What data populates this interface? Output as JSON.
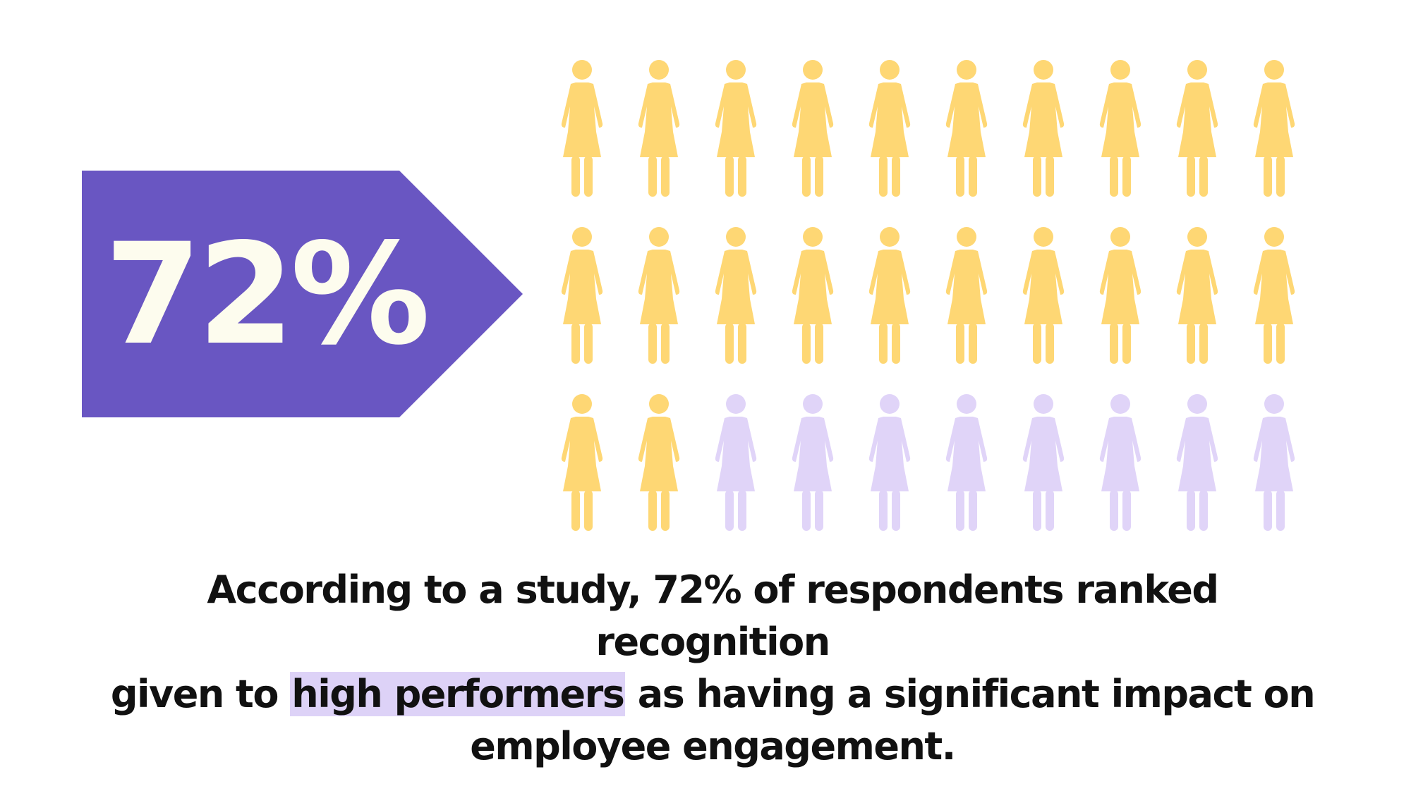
{
  "colors": {
    "badge": "#6956c2",
    "badge_text": "#fdfcee",
    "filled": "#fed774",
    "empty": "#e0d4f8",
    "highlight": "#ddd2f7",
    "text": "#111111"
  },
  "badge": {
    "value_label": "72%"
  },
  "chart_data": {
    "type": "pictograph",
    "icon": "person-icon",
    "total": 30,
    "filled": 22,
    "percent": 72
  },
  "caption": {
    "line1": "According to a study, 72% of respondents ranked recognition",
    "line2_before": "given to ",
    "line2_highlight": "high performers",
    "line2_after": " as having a significant impact on",
    "line3": "employee engagement."
  }
}
